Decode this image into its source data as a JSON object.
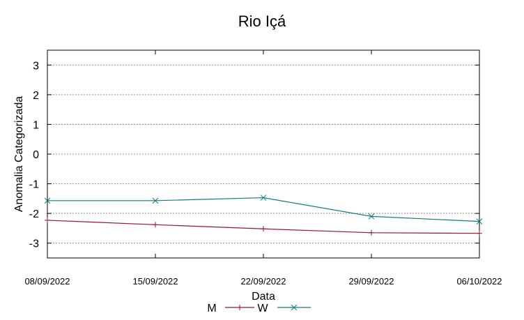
{
  "chart_data": {
    "type": "line",
    "title": "Rio Içá",
    "xlabel": "Data",
    "ylabel": "Anomalia Categorizada",
    "categories": [
      "08/09/2022",
      "15/09/2022",
      "22/09/2022",
      "29/09/2022",
      "06/10/2022"
    ],
    "yticks": [
      "3",
      "2",
      "1",
      "0",
      "-1",
      "-2",
      "-3"
    ],
    "ylim": [
      -3.5,
      3.5
    ],
    "grid": true,
    "legend_position": "bottom-center",
    "series": [
      {
        "name": "M",
        "color": "#a0142a",
        "marker": "plus",
        "x": [
          0,
          1,
          2,
          3,
          4
        ],
        "values": [
          -2.23,
          -2.38,
          -2.52,
          -2.65,
          -2.67
        ]
      },
      {
        "name": "W",
        "color": "#137b7b",
        "marker": "cross",
        "x": [
          0,
          1,
          2,
          3,
          4
        ],
        "values": [
          -1.57,
          -1.57,
          -1.47,
          -2.1,
          -2.27
        ]
      }
    ]
  }
}
